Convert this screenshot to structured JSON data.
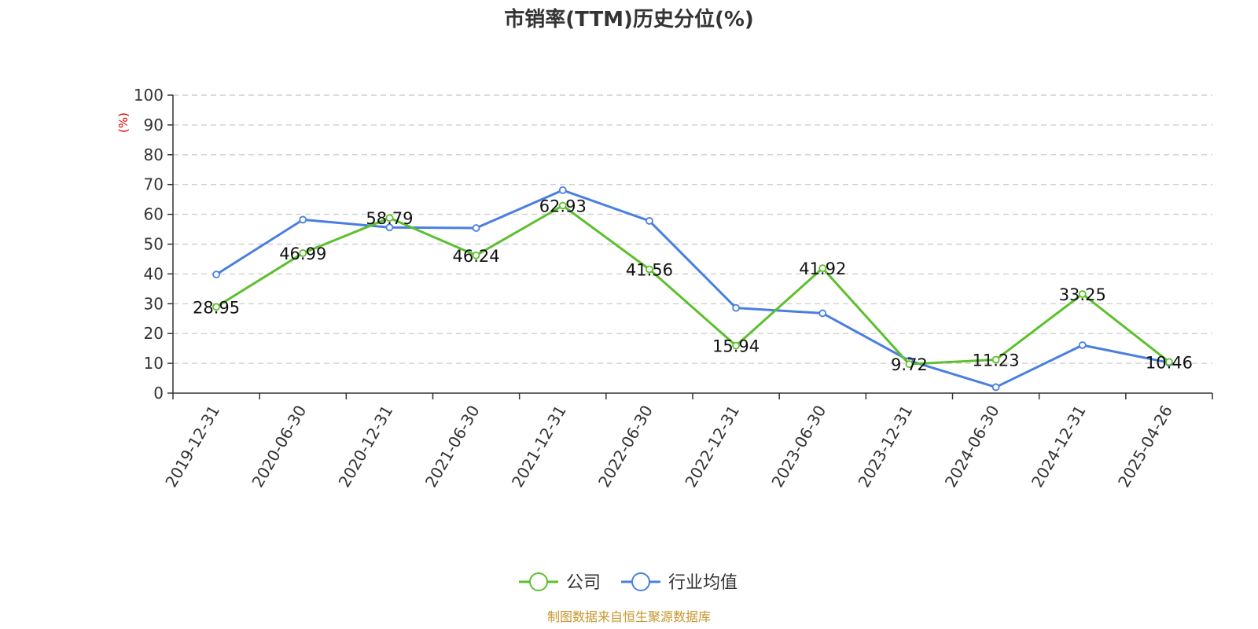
{
  "chart_data": {
    "type": "line",
    "title": "市销率(TTM)历史分位(%)",
    "ylabel": "(%)",
    "xlabel": "",
    "ylim": [
      0,
      100
    ],
    "yticks": [
      0,
      10,
      20,
      30,
      40,
      50,
      60,
      70,
      80,
      90,
      100
    ],
    "grid": true,
    "legend_position": "bottom-center",
    "categories": [
      "2019-12-31",
      "2020-06-30",
      "2020-12-31",
      "2021-06-30",
      "2021-12-31",
      "2022-06-30",
      "2022-12-31",
      "2023-06-30",
      "2023-12-31",
      "2024-06-30",
      "2024-12-31",
      "2025-04-26"
    ],
    "series": [
      {
        "name": "公司",
        "color": "#5cc02d",
        "values": [
          28.95,
          46.99,
          58.79,
          46.24,
          62.93,
          41.56,
          15.94,
          41.92,
          9.72,
          11.23,
          33.25,
          10.46
        ],
        "labels": [
          "28.95",
          "46.99",
          "58.79",
          "46.24",
          "62.93",
          "41.56",
          "15.94",
          "41.92",
          "9.72",
          "11.23",
          "33.25",
          "10.46"
        ]
      },
      {
        "name": "行业均值",
        "color": "#4a7fe0",
        "values": [
          39.8,
          58.2,
          55.6,
          55.4,
          68.1,
          57.8,
          28.6,
          26.8,
          10.9,
          2.0,
          16.1,
          10.2
        ]
      }
    ],
    "source": "制图数据来自恒生聚源数据库"
  }
}
